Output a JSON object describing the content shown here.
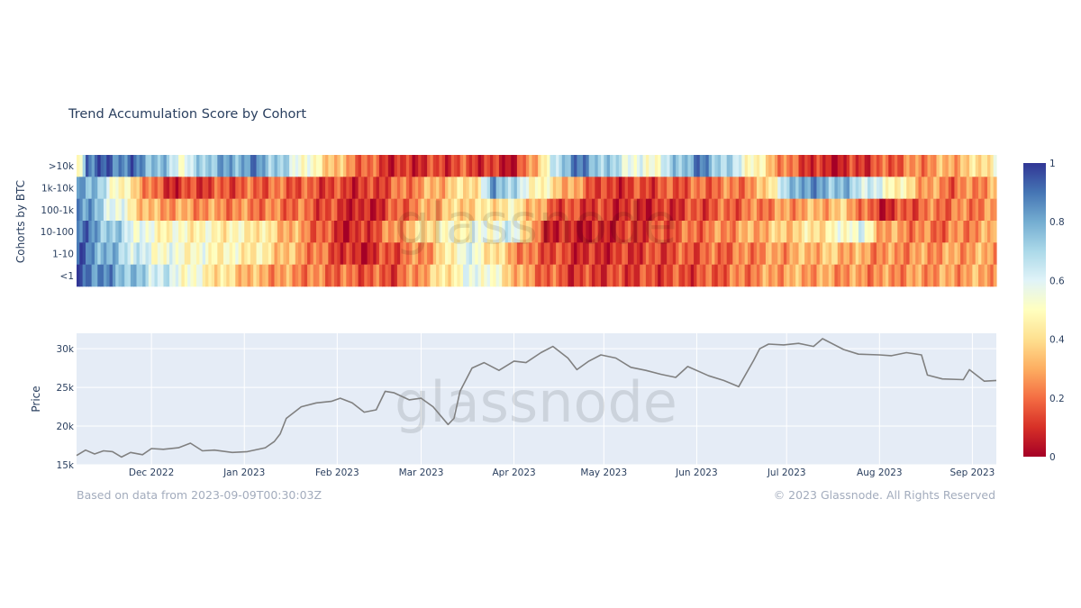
{
  "colors": {
    "heatmap_scale": [
      "#a50026",
      "#d73027",
      "#f46d43",
      "#fdae61",
      "#fee090",
      "#ffffbf",
      "#e0f3f8",
      "#abd9e9",
      "#74add1",
      "#4575b4",
      "#313695"
    ],
    "price_line": "#808080",
    "plot_background": "#e5ecf6",
    "gridline": "#ffffff"
  },
  "watermark": "glassnode",
  "footer": {
    "left": "Based on data from 2023-09-09T00:30:03Z",
    "right": "© 2023 Glassnode. All Rights Reserved"
  },
  "chart_data": [
    {
      "type": "heatmap",
      "title": "Trend Accumulation Score by Cohort",
      "ylabel": "Cohorts by BTC",
      "x_range": [
        "2022-11-06",
        "2023-09-09"
      ],
      "y_categories": [
        ">10k",
        "1k-10k",
        "100-1k",
        "10-100",
        "1-10",
        "<1"
      ],
      "zlim": [
        0,
        1
      ],
      "colorbar_ticks": [
        "0",
        "0.2",
        "0.4",
        "0.6",
        "0.8",
        "1"
      ],
      "segments": {
        ">10k": [
          [
            "2022-11-06",
            0.4
          ],
          [
            "2022-11-09",
            0.93
          ],
          [
            "2022-11-25",
            0.88
          ],
          [
            "2022-12-06",
            0.7
          ],
          [
            "2022-12-12",
            0.55
          ],
          [
            "2022-12-18",
            0.75
          ],
          [
            "2023-01-05",
            0.85
          ],
          [
            "2023-01-25",
            0.45
          ],
          [
            "2023-02-05",
            0.25
          ],
          [
            "2023-02-20",
            0.08
          ],
          [
            "2023-03-15",
            0.15
          ],
          [
            "2023-04-01",
            0.05
          ],
          [
            "2023-04-15",
            0.65
          ],
          [
            "2023-04-20",
            0.9
          ],
          [
            "2023-05-15",
            0.5
          ],
          [
            "2023-06-01",
            0.88
          ],
          [
            "2023-06-15",
            0.6
          ],
          [
            "2023-07-01",
            0.2
          ],
          [
            "2023-07-15",
            0.05
          ],
          [
            "2023-08-15",
            0.25
          ],
          [
            "2023-08-30",
            0.35
          ],
          [
            "2023-09-09",
            0.5
          ]
        ],
        "1k-10k": [
          [
            "2022-11-06",
            0.9
          ],
          [
            "2022-11-18",
            0.55
          ],
          [
            "2022-12-05",
            0.1
          ],
          [
            "2023-01-10",
            0.2
          ],
          [
            "2023-02-10",
            0.1
          ],
          [
            "2023-03-20",
            0.45
          ],
          [
            "2023-03-25",
            0.85
          ],
          [
            "2023-04-05",
            0.55
          ],
          [
            "2023-05-01",
            0.1
          ],
          [
            "2023-06-20",
            0.25
          ],
          [
            "2023-07-05",
            0.85
          ],
          [
            "2023-07-20",
            0.75
          ],
          [
            "2023-08-05",
            0.5
          ],
          [
            "2023-08-15",
            0.3
          ],
          [
            "2023-08-25",
            0.2
          ],
          [
            "2023-09-09",
            0.3
          ]
        ],
        "100-1k": [
          [
            "2022-11-06",
            0.9
          ],
          [
            "2022-11-30",
            0.3
          ],
          [
            "2023-01-20",
            0.2
          ],
          [
            "2023-02-10",
            0.05
          ],
          [
            "2023-03-08",
            0.35
          ],
          [
            "2023-04-01",
            0.45
          ],
          [
            "2023-04-15",
            0.15
          ],
          [
            "2023-05-15",
            0.08
          ],
          [
            "2023-06-15",
            0.2
          ],
          [
            "2023-07-20",
            0.35
          ],
          [
            "2023-08-01",
            0.08
          ],
          [
            "2023-08-15",
            0.2
          ],
          [
            "2023-09-09",
            0.25
          ]
        ],
        "10-100": [
          [
            "2022-11-06",
            0.92
          ],
          [
            "2022-12-01",
            0.5
          ],
          [
            "2023-01-05",
            0.45
          ],
          [
            "2023-02-05",
            0.05
          ],
          [
            "2023-03-05",
            0.45
          ],
          [
            "2023-04-01",
            0.6
          ],
          [
            "2023-04-10",
            0.1
          ],
          [
            "2023-04-25",
            0.05
          ],
          [
            "2023-06-10",
            0.25
          ],
          [
            "2023-07-15",
            0.45
          ],
          [
            "2023-07-25",
            0.6
          ],
          [
            "2023-08-01",
            0.3
          ],
          [
            "2023-08-20",
            0.2
          ],
          [
            "2023-09-09",
            0.3
          ]
        ],
        "1-10": [
          [
            "2022-11-06",
            0.92
          ],
          [
            "2022-12-01",
            0.55
          ],
          [
            "2023-01-05",
            0.45
          ],
          [
            "2023-02-08",
            0.05
          ],
          [
            "2023-03-05",
            0.3
          ],
          [
            "2023-03-15",
            0.6
          ],
          [
            "2023-04-05",
            0.2
          ],
          [
            "2023-04-25",
            0.08
          ],
          [
            "2023-06-10",
            0.2
          ],
          [
            "2023-07-15",
            0.35
          ],
          [
            "2023-08-01",
            0.25
          ],
          [
            "2023-09-09",
            0.3
          ]
        ],
        "<1": [
          [
            "2022-11-06",
            0.95
          ],
          [
            "2022-11-28",
            0.7
          ],
          [
            "2022-12-20",
            0.45
          ],
          [
            "2023-01-05",
            0.3
          ],
          [
            "2023-02-01",
            0.2
          ],
          [
            "2023-02-20",
            0.15
          ],
          [
            "2023-03-10",
            0.45
          ],
          [
            "2023-03-20",
            0.6
          ],
          [
            "2023-04-05",
            0.25
          ],
          [
            "2023-04-20",
            0.12
          ],
          [
            "2023-06-01",
            0.15
          ],
          [
            "2023-07-01",
            0.3
          ],
          [
            "2023-08-01",
            0.25
          ],
          [
            "2023-09-09",
            0.3
          ]
        ]
      }
    },
    {
      "type": "line",
      "ylabel": "Price",
      "ylim": [
        15000,
        32000
      ],
      "y_ticks": [
        15000,
        20000,
        25000,
        30000
      ],
      "y_tick_labels": [
        "15k",
        "20k",
        "25k",
        "30k"
      ],
      "x_range": [
        "2022-11-06",
        "2023-09-09"
      ],
      "x_ticks": [
        "2022-12-01",
        "2023-01-01",
        "2023-02-01",
        "2023-03-01",
        "2023-04-01",
        "2023-05-01",
        "2023-06-01",
        "2023-07-01",
        "2023-08-01",
        "2023-09-01"
      ],
      "x_tick_labels": [
        "Dec 2022",
        "Jan 2023",
        "Feb 2023",
        "Mar 2023",
        "Apr 2023",
        "May 2023",
        "Jun 2023",
        "Jul 2023",
        "Aug 2023",
        "Sep 2023"
      ],
      "series": [
        {
          "x": [
            "2022-11-06",
            "2022-11-09",
            "2022-11-12",
            "2022-11-15",
            "2022-11-18",
            "2022-11-21",
            "2022-11-24",
            "2022-11-28",
            "2022-12-01",
            "2022-12-05",
            "2022-12-10",
            "2022-12-14",
            "2022-12-18",
            "2022-12-22",
            "2022-12-28",
            "2023-01-02",
            "2023-01-08",
            "2023-01-11",
            "2023-01-13",
            "2023-01-15",
            "2023-01-20",
            "2023-01-25",
            "2023-01-30",
            "2023-02-02",
            "2023-02-06",
            "2023-02-10",
            "2023-02-14",
            "2023-02-17",
            "2023-02-20",
            "2023-02-25",
            "2023-03-01",
            "2023-03-05",
            "2023-03-10",
            "2023-03-12",
            "2023-03-14",
            "2023-03-18",
            "2023-03-22",
            "2023-03-27",
            "2023-04-01",
            "2023-04-05",
            "2023-04-10",
            "2023-04-14",
            "2023-04-19",
            "2023-04-22",
            "2023-04-26",
            "2023-04-30",
            "2023-05-05",
            "2023-05-10",
            "2023-05-15",
            "2023-05-20",
            "2023-05-25",
            "2023-05-29",
            "2023-06-05",
            "2023-06-10",
            "2023-06-15",
            "2023-06-20",
            "2023-06-22",
            "2023-06-25",
            "2023-06-30",
            "2023-07-05",
            "2023-07-10",
            "2023-07-13",
            "2023-07-20",
            "2023-07-25",
            "2023-08-01",
            "2023-08-05",
            "2023-08-10",
            "2023-08-15",
            "2023-08-17",
            "2023-08-22",
            "2023-08-29",
            "2023-08-31",
            "2023-09-05",
            "2023-09-09"
          ],
          "y": [
            16200,
            16900,
            16400,
            16800,
            16700,
            16000,
            16600,
            16300,
            17100,
            17000,
            17200,
            17800,
            16800,
            16900,
            16600,
            16700,
            17200,
            18000,
            19000,
            21000,
            22500,
            23000,
            23200,
            23600,
            23000,
            21800,
            22100,
            24500,
            24300,
            23400,
            23600,
            22500,
            20200,
            21000,
            24500,
            27500,
            28200,
            27200,
            28400,
            28200,
            29500,
            30300,
            28800,
            27300,
            28400,
            29200,
            28800,
            27600,
            27200,
            26700,
            26300,
            27700,
            26500,
            25900,
            25100,
            28500,
            30000,
            30600,
            30500,
            30700,
            30300,
            31300,
            29900,
            29300,
            29200,
            29100,
            29500,
            29200,
            26600,
            26100,
            26000,
            27300,
            25800,
            25900
          ]
        }
      ]
    }
  ]
}
